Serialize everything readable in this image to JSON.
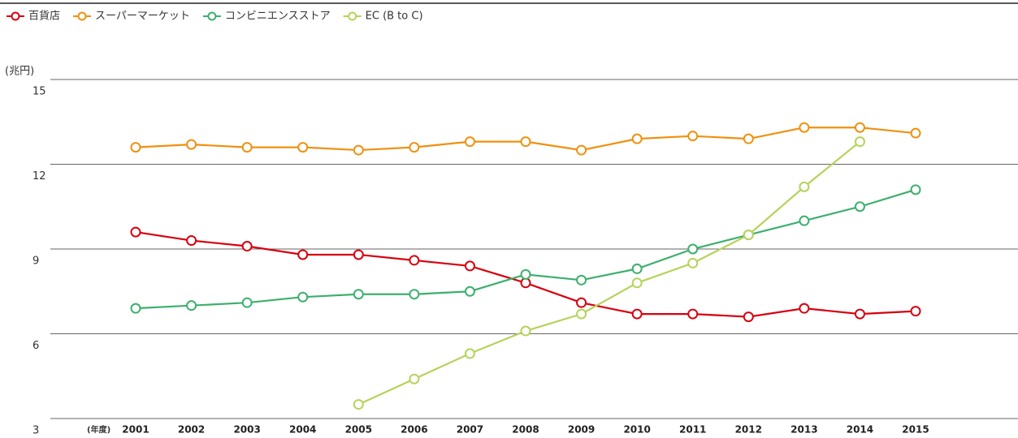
{
  "chart_data": {
    "type": "line",
    "y_label": "(兆円)",
    "x_label": "(年度)",
    "categories": [
      "2001",
      "2002",
      "2003",
      "2004",
      "2005",
      "2006",
      "2007",
      "2008",
      "2009",
      "2010",
      "2011",
      "2012",
      "2013",
      "2014",
      "2015"
    ],
    "series": [
      {
        "name": "百貨店",
        "color": "#d7000f",
        "values": [
          9.6,
          9.3,
          9.1,
          8.8,
          8.8,
          8.6,
          8.4,
          7.8,
          7.1,
          6.7,
          6.7,
          6.6,
          6.9,
          6.7,
          6.8
        ]
      },
      {
        "name": "スーパーマーケット",
        "color": "#f0900f",
        "values": [
          12.6,
          12.7,
          12.6,
          12.6,
          12.5,
          12.6,
          12.8,
          12.8,
          12.5,
          12.9,
          13.0,
          12.9,
          13.3,
          13.3,
          13.1
        ]
      },
      {
        "name": "コンビニエンスストア",
        "color": "#3daf6e",
        "values": [
          6.9,
          7.0,
          7.1,
          7.3,
          7.4,
          7.4,
          7.5,
          8.1,
          7.9,
          8.3,
          9.0,
          9.5,
          10.0,
          10.5,
          11.1
        ]
      },
      {
        "name": "EC (B to C)",
        "color": "#b5d35a",
        "values": [
          null,
          null,
          null,
          null,
          3.5,
          4.4,
          5.3,
          6.1,
          6.7,
          7.8,
          8.5,
          9.5,
          11.2,
          12.8,
          null
        ]
      }
    ],
    "ylim": [
      3,
      15
    ],
    "yticks": [
      3,
      6,
      9,
      12,
      15
    ],
    "grid": true,
    "legend": "top-left"
  }
}
